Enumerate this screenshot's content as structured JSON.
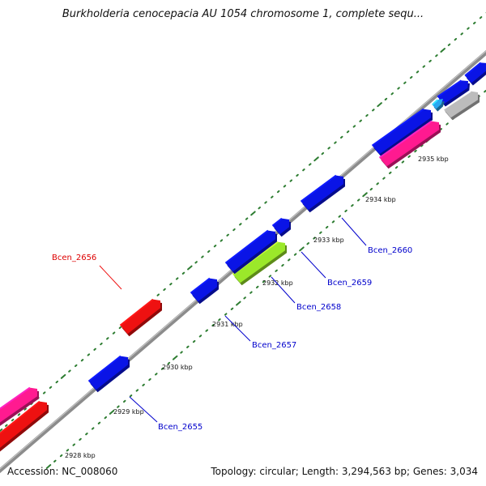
{
  "title": "Burkholderia cenocepacia AU 1054 chromosome 1, complete sequ...",
  "footer": {
    "accession": "Accession: NC_008060",
    "summary": "Topology: circular; Length: 3,294,563 bp; Genes: 3,034"
  },
  "colors": {
    "backbone": "#8c8c8c",
    "tick_dots": "#2e7d32",
    "gene_blue": "#0a14e6",
    "gene_red": "#ee1111",
    "gene_pink": "#ff1a90",
    "gene_green": "#9be82a",
    "gene_grey": "#bcbcbc",
    "gene_lightblue": "#29a8f0",
    "label_blue": "#0000cc",
    "label_red": "#dd0000"
  },
  "scale_labels": [
    "2928 kbp",
    "2929 kbp",
    "2930 kbp",
    "2931 kbp",
    "2932 kbp",
    "2933 kbp",
    "2934 kbp",
    "2935 kbp"
  ],
  "genes": [
    {
      "name": "Bcen_2655",
      "color": "blue"
    },
    {
      "name": "Bcen_2656",
      "color": "red"
    },
    {
      "name": "Bcen_2657",
      "color": "blue"
    },
    {
      "name": "Bcen_2658",
      "color": "green"
    },
    {
      "name": "Bcen_2659",
      "color": "blue"
    },
    {
      "name": "Bcen_2660",
      "color": "blue"
    }
  ]
}
